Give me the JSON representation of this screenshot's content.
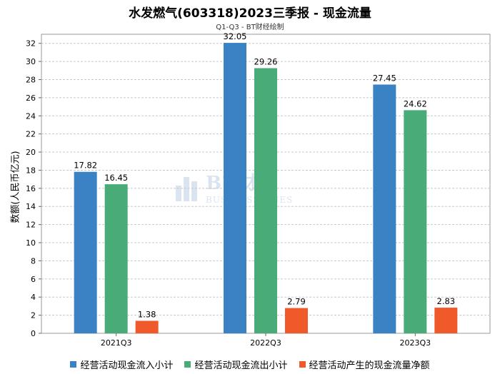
{
  "header": {
    "title": "水发燃气(603318)2023三季报 - 现金流量",
    "subtitle": "Q1-Q3 - BT财经绘制"
  },
  "watermark": {
    "main": "BT财经",
    "sub": "BUSINESSTIMES"
  },
  "chart_data": {
    "type": "bar",
    "title": "水发燃气(603318)2023三季报 - 现金流量",
    "subtitle": "Q1-Q3 - BT财经绘制",
    "ylabel": "数额(人民币亿元)",
    "xlabel": "",
    "categories": [
      "2021Q3",
      "2022Q3",
      "2023Q3"
    ],
    "ylim": [
      0,
      33
    ],
    "yticks": [
      0,
      2,
      4,
      6,
      8,
      10,
      12,
      14,
      16,
      18,
      20,
      22,
      24,
      26,
      28,
      30,
      32
    ],
    "grid": true,
    "legend_position": "bottom",
    "series": [
      {
        "name": "经营活动现金流入小计",
        "color": "#3a82c4",
        "values": [
          17.82,
          32.05,
          27.45
        ]
      },
      {
        "name": "经营活动现金流出小计",
        "color": "#49ab78",
        "values": [
          16.45,
          29.26,
          24.62
        ]
      },
      {
        "name": "经营活动产生的现金流量净额",
        "color": "#f0592a",
        "values": [
          1.38,
          2.79,
          2.83
        ]
      }
    ]
  }
}
